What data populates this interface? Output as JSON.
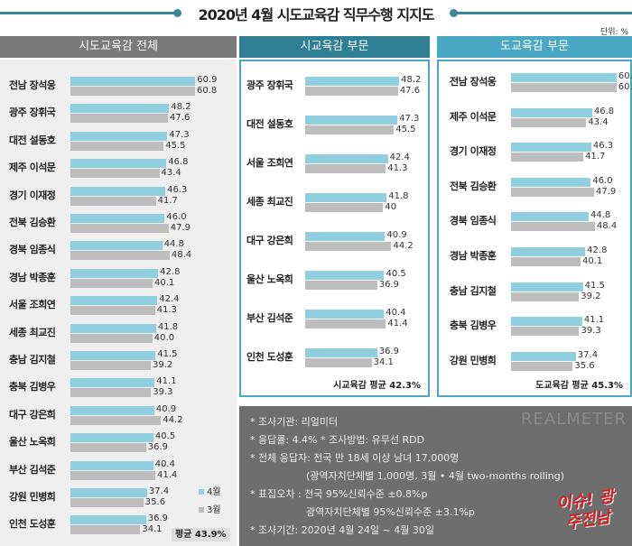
{
  "title": "2020년 4월 시도교육감 직무수행 지지도",
  "unit": "단위: %",
  "legend": {
    "apr": "4월",
    "mar": "3월"
  },
  "colors": {
    "apr": "#8fcfe0",
    "mar": "#bdbdbd",
    "header_all": "#7a7a7a",
    "header_city": "#2e7f93",
    "header_prov": "#4aa8c4"
  },
  "chart_data": [
    {
      "type": "bar",
      "title": "시도교육감 전체",
      "series_names": [
        "4월",
        "3월"
      ],
      "categories": [
        "전남 장석웅",
        "광주 장휘국",
        "대전 설동호",
        "제주 이석문",
        "경기 이재정",
        "전북 김승환",
        "경북 임종식",
        "경남 박종훈",
        "서울 조희연",
        "세종 최교진",
        "충남 김지철",
        "충북 김병우",
        "대구 강은희",
        "울산 노옥희",
        "부산 김석준",
        "강원 민병희",
        "인천 도성훈"
      ],
      "apr": [
        "60.9",
        "48.2",
        "47.3",
        "46.8",
        "46.3",
        "46.0",
        "44.8",
        "42.8",
        "42.4",
        "41.8",
        "41.5",
        "41.1",
        "40.9",
        "40.5",
        "40.4",
        "37.4",
        "36.9"
      ],
      "mar": [
        "60.8",
        "47.6",
        "45.5",
        "43.4",
        "41.7",
        "47.9",
        "48.4",
        "40.1",
        "41.3",
        "40.0",
        "39.2",
        "39.3",
        "44.2",
        "36.9",
        "41.4",
        "35.6",
        "34.1"
      ],
      "average": "평균 43.9%"
    },
    {
      "type": "bar",
      "title": "시교육감 부문",
      "series_names": [
        "4월",
        "3월"
      ],
      "categories": [
        "광주 장휘국",
        "대전 설동호",
        "서울 조희연",
        "세종 최교진",
        "대구 강은희",
        "울산 노옥희",
        "부산 김석준",
        "인천 도성훈"
      ],
      "apr": [
        "48.2",
        "47.3",
        "42.4",
        "41.8",
        "40.9",
        "40.5",
        "40.4",
        "36.9"
      ],
      "mar": [
        "47.6",
        "45.5",
        "41.3",
        "40",
        "44.2",
        "36.9",
        "41.4",
        "34.1"
      ],
      "average": "시교육감 평균 42.3%"
    },
    {
      "type": "bar",
      "title": "도교육감 부문",
      "series_names": [
        "4월",
        "3월"
      ],
      "categories": [
        "전남 장석웅",
        "제주 이석문",
        "경기 이재정",
        "전북 김승환",
        "경북 임종식",
        "경남 박종훈",
        "충남 김지철",
        "충북 김병우",
        "강원 민병희"
      ],
      "apr": [
        "60.9",
        "46.8",
        "46.3",
        "46.0",
        "44.8",
        "42.8",
        "41.5",
        "41.1",
        "37.4"
      ],
      "mar": [
        "60.8",
        "43.4",
        "41.7",
        "47.9",
        "48.4",
        "40.1",
        "39.2",
        "39.3",
        "35.6"
      ],
      "average": "도교육감 평균 45.3%"
    }
  ],
  "notes": [
    "* 조사기관: 리얼미터",
    "* 응답률: 4.4% * 조사방법: 유무선 RDD",
    "* 전체 응답자: 전국 만 18세 이상 남녀 17,000명",
    "(광역자치단체별 1,000명, 3월 • 4월 two-months rolling)",
    "* 표집오차 : 전국 95%신뢰수준 ±0.8%p",
    "광역자치단체별 95%신뢰수준 ±3.1%p",
    "* 조사기간: 2020년 4월 24일 ~ 4월 30일"
  ],
  "logo": "이슈! 광주전남",
  "watermark": "REALMETER"
}
